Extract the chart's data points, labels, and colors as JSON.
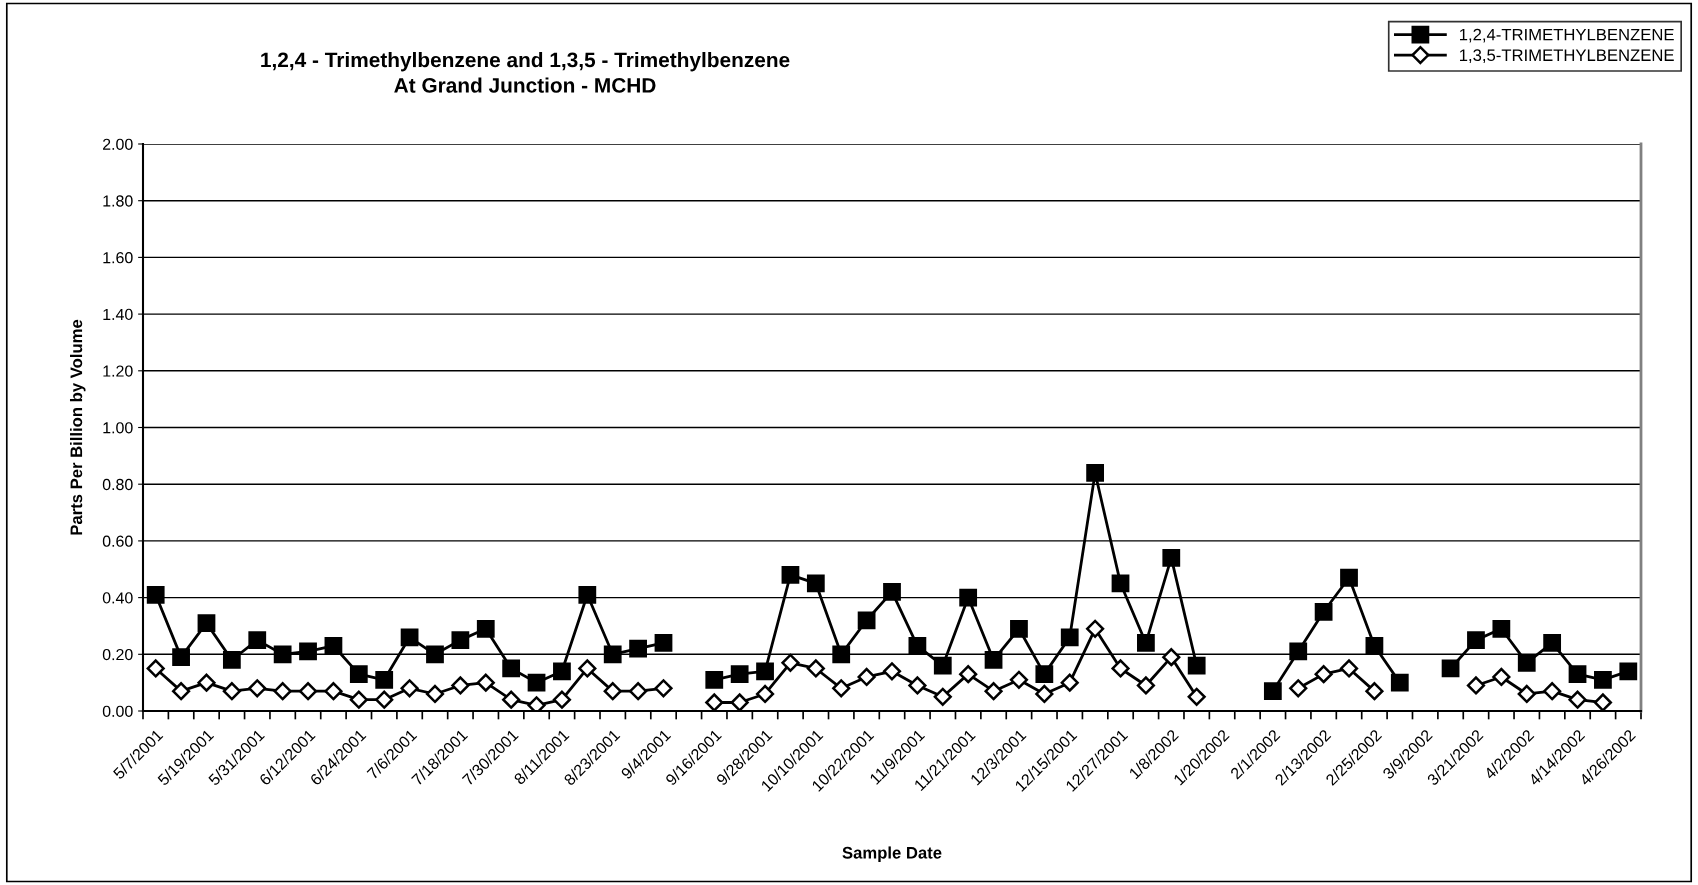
{
  "chart_data": {
    "type": "line",
    "title": "1,2,4 - Trimethylbenzene and 1,3,5 - Trimethylbenzene\nAt Grand Junction - MCHD",
    "xlabel": "Sample Date",
    "ylabel": "Parts Per Billion by Volume",
    "categories": [
      "5/7/2001",
      null,
      "5/19/2001",
      null,
      "5/31/2001",
      null,
      "6/12/2001",
      null,
      "6/24/2001",
      null,
      "7/6/2001",
      null,
      "7/18/2001",
      null,
      "7/30/2001",
      null,
      "8/11/2001",
      null,
      "8/23/2001",
      null,
      "9/4/2001",
      null,
      "9/16/2001",
      null,
      "9/28/2001",
      null,
      "10/10/2001",
      null,
      "10/22/2001",
      null,
      "11/9/2001",
      null,
      "11/21/2001",
      null,
      "12/3/2001",
      null,
      "12/15/2001",
      null,
      "12/27/2001",
      null,
      "1/8/2002",
      null,
      "1/20/2002",
      null,
      "2/1/2002",
      null,
      "2/13/2002",
      null,
      "2/25/2002",
      null,
      "3/9/2002",
      null,
      "3/21/2002",
      null,
      "4/2/2002",
      null,
      "4/14/2002",
      null,
      "4/26/2002"
    ],
    "series": [
      {
        "name": "1,2,4-TRIMETHYLBENZENE",
        "color": "#000000",
        "marker": "square",
        "values": [
          0.41,
          0.19,
          0.31,
          0.18,
          0.25,
          0.2,
          0.21,
          0.23,
          0.13,
          0.11,
          0.26,
          0.2,
          0.25,
          0.29,
          0.15,
          0.1,
          0.14,
          0.41,
          0.2,
          0.22,
          0.24,
          null,
          0.11,
          0.13,
          0.14,
          0.48,
          0.45,
          0.2,
          0.32,
          0.42,
          0.23,
          0.16,
          0.4,
          0.18,
          0.29,
          0.13,
          0.26,
          0.84,
          0.45,
          0.24,
          0.54,
          0.16,
          null,
          null,
          0.07,
          0.21,
          0.35,
          0.47,
          0.23,
          0.1,
          null,
          0.15,
          0.25,
          0.29,
          0.17,
          0.24,
          0.13,
          0.11,
          0.14
        ]
      },
      {
        "name": "1,3,5-TRIMETHYLBENZENE",
        "color": "#000000",
        "marker": "diamond",
        "values": [
          0.15,
          0.07,
          0.1,
          0.07,
          0.08,
          0.07,
          0.07,
          0.07,
          0.04,
          0.04,
          0.08,
          0.06,
          0.09,
          0.1,
          0.04,
          0.02,
          0.04,
          0.15,
          0.07,
          0.07,
          0.08,
          null,
          0.03,
          0.03,
          0.06,
          0.17,
          0.15,
          0.08,
          0.12,
          0.14,
          0.09,
          0.05,
          0.13,
          0.07,
          0.11,
          0.06,
          0.1,
          0.29,
          0.15,
          0.09,
          0.19,
          0.05,
          null,
          null,
          null,
          0.08,
          0.13,
          0.15,
          0.07,
          null,
          null,
          null,
          0.09,
          0.12,
          0.06,
          0.07,
          0.04,
          0.03,
          null
        ]
      }
    ],
    "ylim": [
      0,
      2
    ],
    "yticks": [
      {
        "value": 0,
        "label": "0.00"
      },
      {
        "value": 0.2,
        "label": "0.20"
      },
      {
        "value": 0.4,
        "label": "0.40"
      },
      {
        "value": 0.6,
        "label": "0.60"
      },
      {
        "value": 0.8,
        "label": "0.80"
      },
      {
        "value": 1.0,
        "label": "1.00"
      },
      {
        "value": 1.2,
        "label": "1.20"
      },
      {
        "value": 1.4,
        "label": "1.40"
      },
      {
        "value": 1.6,
        "label": "1.60"
      },
      {
        "value": 1.8,
        "label": "1.80"
      },
      {
        "value": 2.0,
        "label": "2.00"
      }
    ],
    "grid": "y",
    "legend": "top right",
    "line_style": "solid"
  }
}
